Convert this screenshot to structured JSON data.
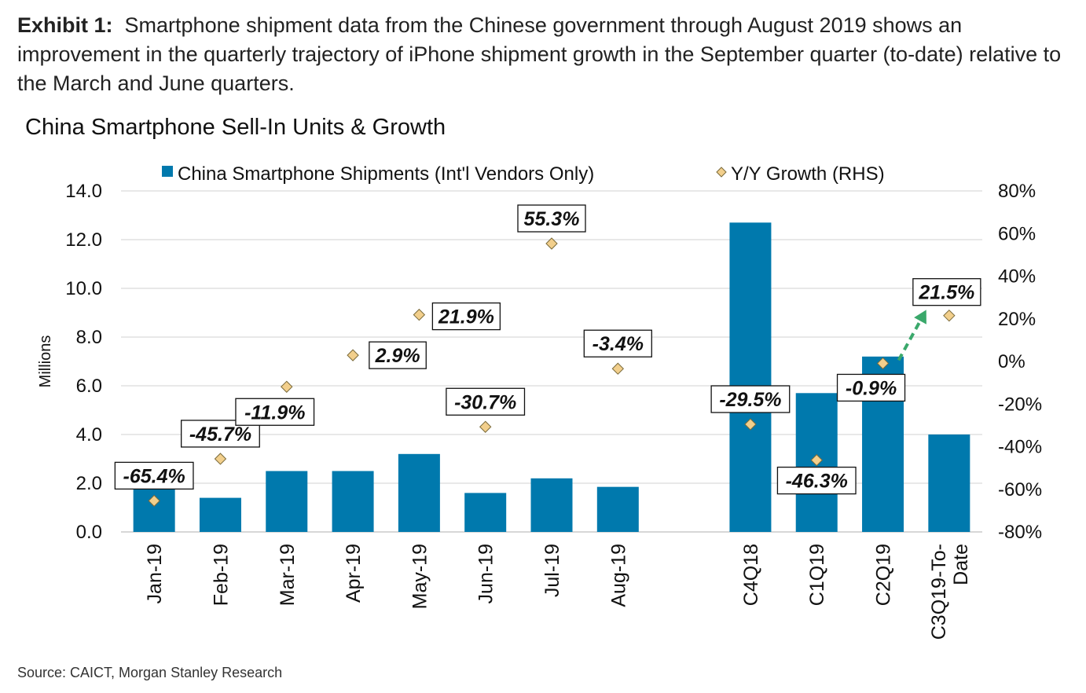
{
  "header": {
    "exhibit_label": "Exhibit 1:",
    "exhibit_text": "Smartphone shipment data from the Chinese government through August 2019 shows an improvement in the quarterly trajectory of iPhone shipment growth in the September quarter (to-date) relative to the March and June quarters."
  },
  "footer": {
    "source": "Source: CAICT, Morgan Stanley Research"
  },
  "colors": {
    "bar": "#0079ad",
    "marker": "#f2cf8c",
    "marker_edge": "#7a6a3a",
    "arrow": "#3aa86b",
    "grid": "#d9d9d9"
  },
  "chart_data": {
    "type": "bar",
    "title": "China Smartphone Sell-In Units & Growth",
    "ylabel": "Millions",
    "ylim": [
      0,
      14
    ],
    "yticks": [
      "0.0",
      "2.0",
      "4.0",
      "6.0",
      "8.0",
      "10.0",
      "12.0",
      "14.0"
    ],
    "y2lim": [
      -80,
      80
    ],
    "y2ticks": [
      "-80%",
      "-60%",
      "-40%",
      "-20%",
      "0%",
      "20%",
      "40%",
      "60%",
      "80%"
    ],
    "grid": true,
    "legend_position": "top",
    "categories": [
      "Jan-19",
      "Feb-19",
      "Mar-19",
      "Apr-19",
      "May-19",
      "Jun-19",
      "Jul-19",
      "Aug-19",
      "C4Q18",
      "C1Q19",
      "C2Q19",
      "C3Q19-To-Date"
    ],
    "category_lines": [
      [
        "Jan-19"
      ],
      [
        "Feb-19"
      ],
      [
        "Mar-19"
      ],
      [
        "Apr-19"
      ],
      [
        "May-19"
      ],
      [
        "Jun-19"
      ],
      [
        "Jul-19"
      ],
      [
        "Aug-19"
      ],
      [
        "C4Q18"
      ],
      [
        "C1Q19"
      ],
      [
        "C2Q19"
      ],
      [
        "C3Q19-To-",
        "Date"
      ]
    ],
    "gap_after_index": 7,
    "series": [
      {
        "name": "China Smartphone Shipments (Int'l Vendors Only)",
        "kind": "bar",
        "axis": "left",
        "values": [
          1.8,
          1.4,
          2.5,
          2.5,
          3.2,
          1.6,
          2.2,
          1.85,
          12.7,
          5.7,
          7.2,
          4.0
        ]
      },
      {
        "name": "Y/Y Growth (RHS)",
        "kind": "scatter",
        "axis": "right",
        "values": [
          -65.4,
          -45.7,
          -11.9,
          2.9,
          21.9,
          -30.7,
          55.3,
          -3.4,
          -29.5,
          -46.3,
          -0.9,
          21.5
        ]
      }
    ],
    "data_labels": [
      "-65.4%",
      "-45.7%",
      "-11.9%",
      "2.9%",
      "21.9%",
      "-30.7%",
      "55.3%",
      "-3.4%",
      "-29.5%",
      "-46.3%",
      "-0.9%",
      "21.5%"
    ]
  }
}
